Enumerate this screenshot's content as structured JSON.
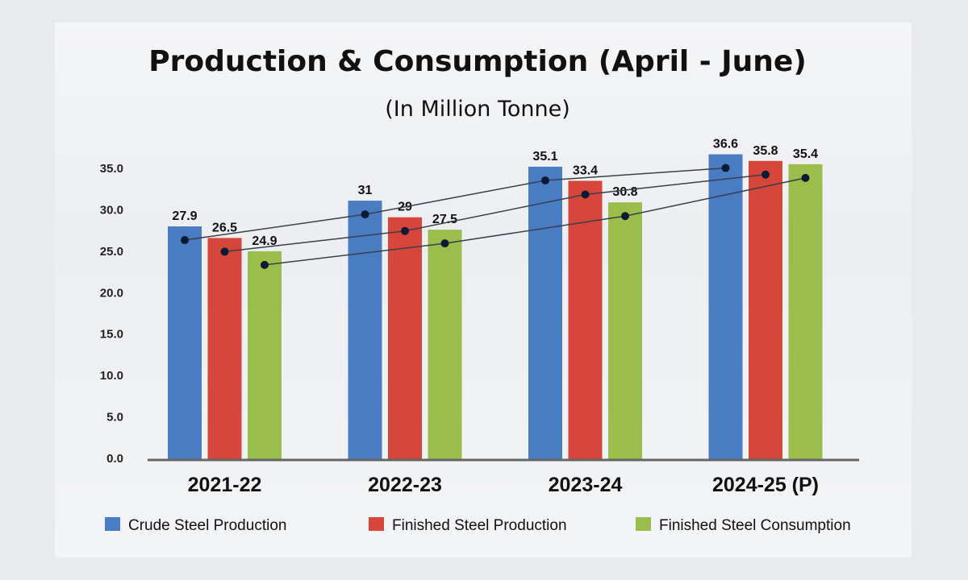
{
  "chart_data": {
    "type": "bar",
    "title": "Production & Consumption (April - June)",
    "subtitle": "(In Million Tonne)",
    "categories": [
      "2021-22",
      "2022-23",
      "2023-24",
      "2024-25 (P)"
    ],
    "series": [
      {
        "name": "Crude Steel Production",
        "color": "#4a7cc4",
        "values": [
          27.9,
          31.0,
          35.1,
          36.6
        ]
      },
      {
        "name": "Finished Steel Production",
        "color": "#d6463a",
        "values": [
          26.5,
          29.0,
          33.4,
          35.8
        ]
      },
      {
        "name": "Finished Steel Consumption",
        "color": "#9bbd4b",
        "values": [
          24.9,
          27.5,
          30.8,
          35.4
        ]
      }
    ],
    "yticks": [
      "0.0",
      "5.0",
      "10.0",
      "15.0",
      "20.0",
      "25.0",
      "30.0",
      "35.0"
    ],
    "ylim": [
      0,
      35
    ],
    "trend_lines": true,
    "grid": false,
    "legend_position": "bottom"
  }
}
